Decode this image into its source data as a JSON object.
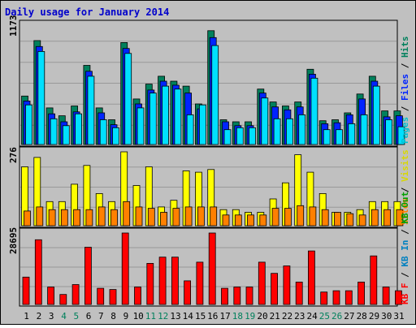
{
  "chart_data": [
    {
      "type": "bar",
      "title": "Daily usage for January 2014",
      "categories": [
        "1",
        "2",
        "3",
        "4",
        "5",
        "6",
        "7",
        "8",
        "9",
        "10",
        "11",
        "12",
        "13",
        "14",
        "15",
        "16",
        "17",
        "18",
        "19",
        "20",
        "21",
        "22",
        "23",
        "24",
        "25",
        "26",
        "27",
        "28",
        "29",
        "30",
        "31"
      ],
      "weekend_categories": [
        "4",
        "5",
        "11",
        "12",
        "18",
        "19",
        "25",
        "26"
      ],
      "axis_max_label": "1173",
      "ylim": [
        0,
        1173
      ],
      "series": [
        {
          "name": "Hits",
          "color": "#00805c",
          "values": [
            490,
            1050,
            370,
            290,
            390,
            800,
            370,
            250,
            1030,
            460,
            610,
            690,
            640,
            590,
            410,
            1150,
            250,
            230,
            230,
            560,
            430,
            390,
            430,
            760,
            240,
            250,
            320,
            510,
            690,
            340,
            340
          ]
        },
        {
          "name": "Files",
          "color": "#0024ff",
          "values": [
            440,
            990,
            310,
            230,
            330,
            740,
            320,
            200,
            970,
            410,
            550,
            640,
            600,
            520,
            360,
            1080,
            230,
            190,
            190,
            520,
            380,
            350,
            380,
            710,
            210,
            220,
            300,
            460,
            640,
            280,
            290
          ]
        },
        {
          "name": "Pages",
          "color": "#00e0ff",
          "values": [
            400,
            940,
            260,
            190,
            310,
            690,
            250,
            170,
            920,
            370,
            520,
            590,
            560,
            300,
            400,
            1000,
            150,
            170,
            170,
            470,
            260,
            260,
            300,
            670,
            150,
            150,
            210,
            300,
            590,
            250,
            180
          ]
        }
      ],
      "legend": [
        "Pages",
        "Files",
        "Hits"
      ]
    },
    {
      "type": "bar",
      "axis_max_label": "276",
      "ylim": [
        0,
        276
      ],
      "series": [
        {
          "name": "Visits",
          "color": "#ffff00",
          "values": [
            220,
            255,
            90,
            90,
            155,
            225,
            120,
            90,
            276,
            150,
            220,
            70,
            95,
            205,
            200,
            210,
            60,
            60,
            50,
            50,
            100,
            160,
            265,
            200,
            120,
            50,
            50,
            60,
            90,
            90,
            90
          ]
        },
        {
          "name": "Sites",
          "color": "#ff8000",
          "values": [
            55,
            70,
            60,
            60,
            60,
            60,
            70,
            60,
            90,
            70,
            65,
            50,
            65,
            70,
            70,
            70,
            40,
            40,
            40,
            40,
            65,
            65,
            75,
            70,
            60,
            50,
            45,
            40,
            60,
            60,
            60
          ]
        }
      ],
      "legend": [
        "Sites",
        "Visits"
      ]
    },
    {
      "type": "bar",
      "axis_max_label": "28695",
      "ylim": [
        0,
        28695
      ],
      "series": [
        {
          "name": "KB F",
          "color": "#ff0000",
          "values": [
            11000,
            26000,
            7000,
            4000,
            8000,
            23000,
            6500,
            6000,
            28695,
            7000,
            16500,
            19000,
            19000,
            9500,
            17000,
            28695,
            6500,
            7000,
            7000,
            17000,
            12500,
            15500,
            9000,
            21500,
            5000,
            5500,
            5500,
            9000,
            19500,
            7000,
            5500
          ]
        }
      ],
      "legend": [
        "KB F",
        "KB In",
        "KB Out"
      ],
      "legend_colors": {
        "KB F": "#ff0000",
        "KB In": "#0080c0",
        "KB Out": "#00a000"
      }
    }
  ],
  "legend_separator": " / ",
  "colors": {
    "weekday_label": "#000000",
    "weekend_label": "#00805c",
    "title": "#0000ff",
    "background": "#c0c0c0"
  }
}
